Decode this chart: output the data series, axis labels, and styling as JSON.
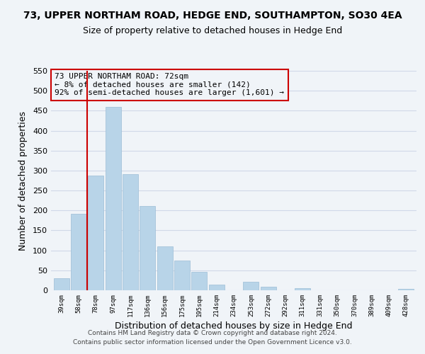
{
  "title": "73, UPPER NORTHAM ROAD, HEDGE END, SOUTHAMPTON, SO30 4EA",
  "subtitle": "Size of property relative to detached houses in Hedge End",
  "xlabel": "Distribution of detached houses by size in Hedge End",
  "ylabel": "Number of detached properties",
  "bar_labels": [
    "39sqm",
    "58sqm",
    "78sqm",
    "97sqm",
    "117sqm",
    "136sqm",
    "156sqm",
    "175sqm",
    "195sqm",
    "214sqm",
    "234sqm",
    "253sqm",
    "272sqm",
    "292sqm",
    "311sqm",
    "331sqm",
    "350sqm",
    "370sqm",
    "389sqm",
    "409sqm",
    "428sqm"
  ],
  "bar_values": [
    30,
    192,
    287,
    459,
    291,
    212,
    110,
    74,
    47,
    14,
    0,
    21,
    8,
    0,
    5,
    0,
    0,
    0,
    0,
    0,
    3
  ],
  "bar_color": "#b8d4e8",
  "bar_edge_color": "#9bbdd6",
  "grid_color": "#d0d8e8",
  "annotation_line1": "73 UPPER NORTHAM ROAD: 72sqm",
  "annotation_line2": "← 8% of detached houses are smaller (142)",
  "annotation_line3": "92% of semi-detached houses are larger (1,601) →",
  "vline_color": "#cc0000",
  "vline_x": 1.5,
  "ylim": [
    0,
    550
  ],
  "yticks": [
    0,
    50,
    100,
    150,
    200,
    250,
    300,
    350,
    400,
    450,
    500,
    550
  ],
  "footer_line1": "Contains HM Land Registry data © Crown copyright and database right 2024.",
  "footer_line2": "Contains public sector information licensed under the Open Government Licence v3.0.",
  "bg_color": "#f0f4f8",
  "title_fontsize": 10,
  "subtitle_fontsize": 9
}
